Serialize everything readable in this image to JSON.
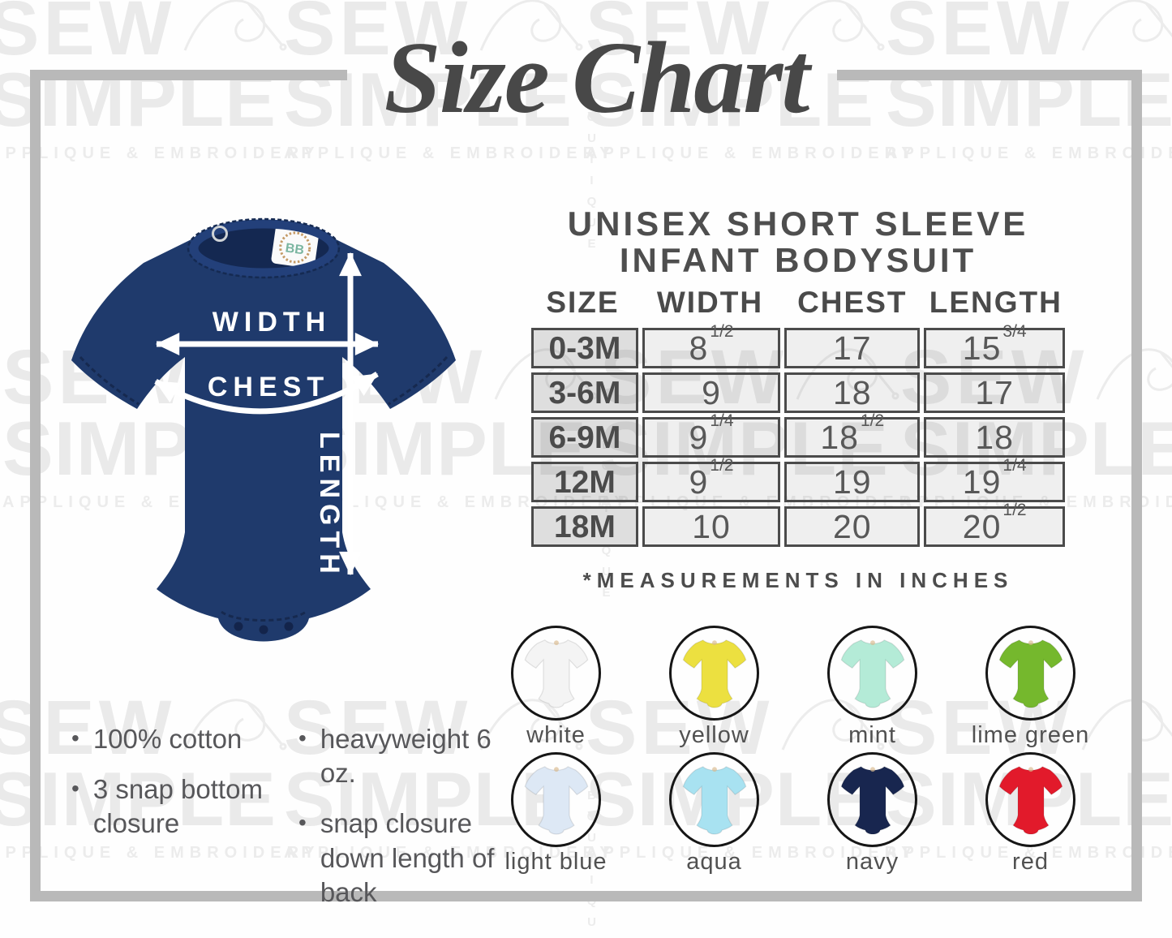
{
  "title": "Size Chart",
  "watermark": {
    "word1": "SEW",
    "word2": "SIMPLE",
    "tagline": "APPLIQUE & EMBROIDERY",
    "vertical_word": "BOUTIQUE"
  },
  "diagram": {
    "width_label": "WIDTH",
    "chest_label": "CHEST",
    "length_label": "LENGTH",
    "tag_text": "BB",
    "garment_color": "#1f3a6c"
  },
  "product_heading": {
    "line1": "UNISEX SHORT SLEEVE",
    "line2": "INFANT BODYSUIT"
  },
  "size_table": {
    "columns": [
      "SIZE",
      "WIDTH",
      "CHEST",
      "LENGTH"
    ],
    "rows": [
      {
        "size": "0-3M",
        "width": "8 1/2",
        "chest": "17",
        "length": "15 3/4"
      },
      {
        "size": "3-6M",
        "width": "9",
        "chest": "18",
        "length": "17"
      },
      {
        "size": "6-9M",
        "width": "9 1/4",
        "chest": "18 1/2",
        "length": "18"
      },
      {
        "size": "12M",
        "width": "9 1/2",
        "chest": "19",
        "length": "19 1/4"
      },
      {
        "size": "18M",
        "width": "10",
        "chest": "20",
        "length": "20 1/2"
      }
    ],
    "footnote": "*MEASUREMENTS IN INCHES"
  },
  "features": [
    "100% cotton",
    "3 snap bottom closure",
    "heavyweight 6 oz.",
    "snap closure down length of back"
  ],
  "color_swatches": [
    {
      "name": "white",
      "hex": "#f4f4f4"
    },
    {
      "name": "yellow",
      "hex": "#ece040"
    },
    {
      "name": "mint",
      "hex": "#b4ebd7"
    },
    {
      "name": "lime green",
      "hex": "#75b82d"
    },
    {
      "name": "light blue",
      "hex": "#dde8f5"
    },
    {
      "name": "aqua",
      "hex": "#a8e2f1"
    },
    {
      "name": "navy",
      "hex": "#18264f"
    },
    {
      "name": "red",
      "hex": "#e21a2b"
    }
  ]
}
